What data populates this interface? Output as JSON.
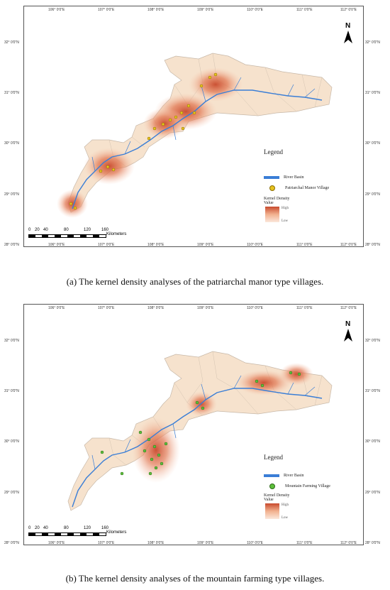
{
  "panel_a": {
    "caption": "(a) The kernel density analyses of the patriarchal manor type villages.",
    "legend": {
      "title": "Legend",
      "river_label": "River Basin",
      "village_label": "Patriarchal Manor Village",
      "density_title_1": "Kernel Density",
      "density_title_2": "Value",
      "high": "High",
      "low": "Low"
    },
    "colors": {
      "village": "#e6c21f",
      "density": "#c84a2c"
    }
  },
  "panel_b": {
    "caption": "(b) The kernel density analyses of the mountain farming type villages.",
    "legend": {
      "title": "Legend",
      "river_label": "River Basin",
      "village_label": "Mountain Farming Village",
      "density_title_1": "Kernel Density",
      "density_title_2": "Value",
      "high": "High",
      "low": "Low"
    },
    "colors": {
      "village": "#5cbf3a",
      "density": "#c84a2c"
    }
  },
  "map_axes": {
    "lon_labels": [
      "106° 0′0″E",
      "107° 0′0″E",
      "108° 0′0″E",
      "109° 0′0″E",
      "110° 0′0″E",
      "111° 0′0″E",
      "112° 0′0″E"
    ],
    "lat_labels": [
      "32° 0′0″N",
      "31° 0′0″N",
      "30° 0′0″N",
      "29° 0′0″N",
      "28° 0′0″N"
    ],
    "north_label": "N"
  },
  "scale_bar": {
    "ticks": [
      "0",
      "20",
      "40",
      "80",
      "120",
      "160"
    ],
    "unit": "Kilometers"
  }
}
